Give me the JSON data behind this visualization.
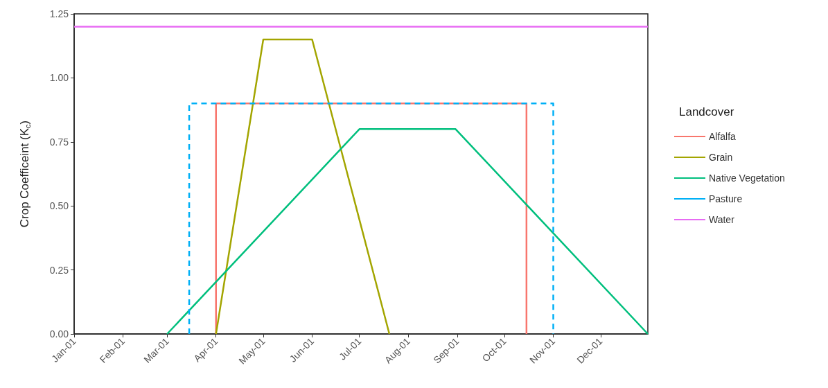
{
  "chart_data": {
    "type": "line",
    "ylabel": "Crop Coefficeint (K$_{c}$)",
    "legend_title": "Landcover",
    "legend": "right",
    "grid": false,
    "marker": "none",
    "xlim": [
      "--01-01",
      "--12-31"
    ],
    "xticks": [
      {
        "value": "--01-01",
        "label": "Jan-01"
      },
      {
        "value": "--02-01",
        "label": "Feb-01"
      },
      {
        "value": "--03-01",
        "label": "Mar-01"
      },
      {
        "value": "--04-01",
        "label": "Apr-01"
      },
      {
        "value": "--05-01",
        "label": "May-01"
      },
      {
        "value": "--06-01",
        "label": "Jun-01"
      },
      {
        "value": "--07-01",
        "label": "Jul-01"
      },
      {
        "value": "--08-01",
        "label": "Aug-01"
      },
      {
        "value": "--09-01",
        "label": "Sep-01"
      },
      {
        "value": "--10-01",
        "label": "Oct-01"
      },
      {
        "value": "--11-01",
        "label": "Nov-01"
      },
      {
        "value": "--12-01",
        "label": "Dec-01"
      }
    ],
    "ylim": [
      0,
      1.25
    ],
    "yticks": [
      {
        "value": 0,
        "label": "0.00"
      },
      {
        "value": 0.25,
        "label": "0.25"
      },
      {
        "value": 0.5,
        "label": "0.50"
      },
      {
        "value": 0.75,
        "label": "0.75"
      },
      {
        "value": 1,
        "label": "1.00"
      },
      {
        "value": 1.25,
        "label": "1.25"
      }
    ],
    "series": [
      {
        "name": "Alfalfa",
        "color": "#f8766d",
        "line_style": "solid",
        "x": [
          "--04-01",
          "--04-01",
          "--10-15",
          "--10-15"
        ],
        "values": [
          0,
          0.9,
          0.9,
          0
        ]
      },
      {
        "name": "Grain",
        "color": "#a3a500",
        "line_style": "solid",
        "x": [
          "--04-01",
          "--05-01",
          "--06-01",
          "--07-20"
        ],
        "values": [
          0,
          1.15,
          1.15,
          0
        ]
      },
      {
        "name": "Native Vegetation",
        "color": "#00bf7d",
        "line_style": "solid",
        "x": [
          "--03-01",
          "--07-01",
          "--08-31",
          "--12-31"
        ],
        "values": [
          0,
          0.8,
          0.8,
          0
        ]
      },
      {
        "name": "Pasture",
        "color": "#00b0f6",
        "line_style": "dashed",
        "x": [
          "--03-15",
          "--03-15",
          "--11-01",
          "--11-01"
        ],
        "values": [
          0,
          0.9,
          0.9,
          0
        ]
      },
      {
        "name": "Water",
        "color": "#e76bf3",
        "line_style": "solid",
        "x": [
          "--01-01",
          "--12-31"
        ],
        "values": [
          1.2,
          1.2
        ]
      }
    ]
  }
}
